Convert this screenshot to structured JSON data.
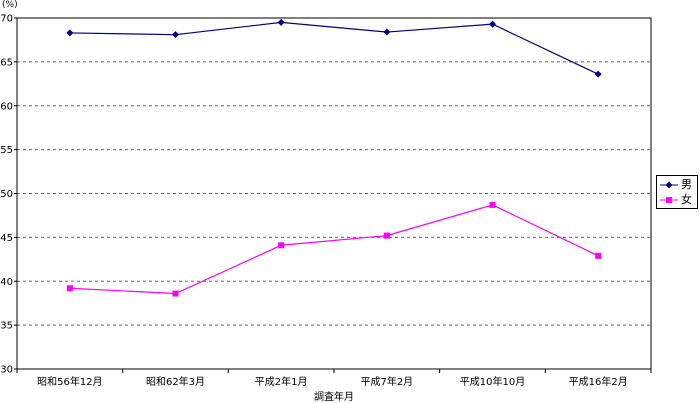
{
  "chart_data": {
    "type": "line",
    "categories": [
      "昭和56年12月",
      "昭和62年3月",
      "平成2年1月",
      "平成7年2月",
      "平成10年10月",
      "平成16年2月"
    ],
    "series": [
      {
        "name": "男",
        "values": [
          68.3,
          68.1,
          69.5,
          68.4,
          69.3,
          63.6
        ],
        "color": "#000080",
        "marker": "diamond"
      },
      {
        "name": "女",
        "values": [
          39.2,
          38.6,
          44.1,
          45.2,
          48.7,
          42.9
        ],
        "color": "#ff00ff",
        "marker": "square"
      }
    ],
    "ylabel": "(%)",
    "xlabel": "調査年月",
    "ylim": [
      30,
      70
    ],
    "yticks": [
      30,
      35,
      40,
      45,
      50,
      55,
      60,
      65,
      70
    ],
    "grid": true,
    "legend_position": "right"
  }
}
